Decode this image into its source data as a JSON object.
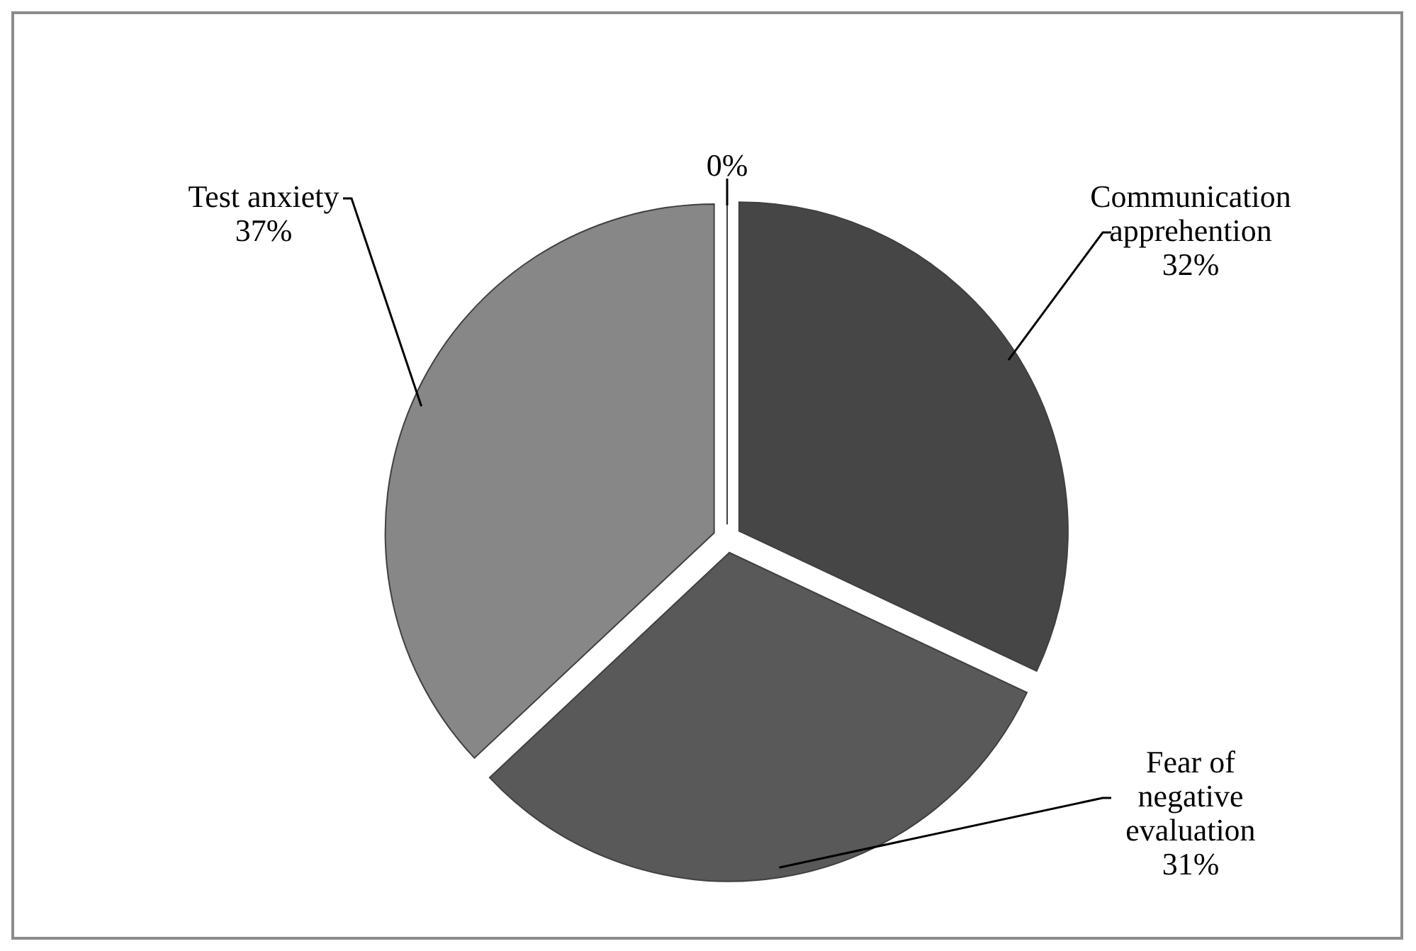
{
  "chart_data": {
    "type": "pie",
    "categories": [
      "Communication apprehention",
      "Fear of negative evaluation",
      "Test anxiety",
      null
    ],
    "values": [
      32,
      31,
      37,
      0
    ],
    "colors": [
      "#464646",
      "#595959",
      "#878787",
      "#a6a6a6"
    ],
    "value_labels": [
      "32%",
      "31%",
      "37%",
      "0%"
    ]
  }
}
